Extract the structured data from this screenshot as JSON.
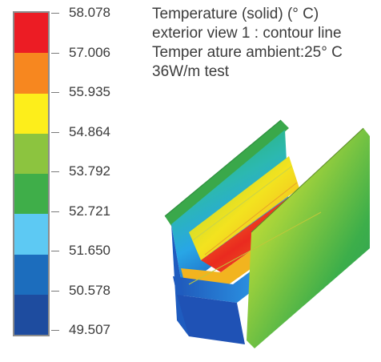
{
  "legend": {
    "labels": [
      "58.078",
      "57.006",
      "55.935",
      "54.864",
      "53.792",
      "52.721",
      "51.650",
      "50.578",
      "49.507"
    ],
    "colors": [
      "#ec1c24",
      "#f7871f",
      "#fdee1b",
      "#8cc43f",
      "#3fae49",
      "#5dc9f3",
      "#1c6dbd",
      "#1e4c9f"
    ]
  },
  "title": {
    "line1": "Temperature (solid) (° C)",
    "line2": "exterior view 1 : contour line",
    "line3": "Temper ature ambient:25° C",
    "line4": "36W/m test"
  }
}
